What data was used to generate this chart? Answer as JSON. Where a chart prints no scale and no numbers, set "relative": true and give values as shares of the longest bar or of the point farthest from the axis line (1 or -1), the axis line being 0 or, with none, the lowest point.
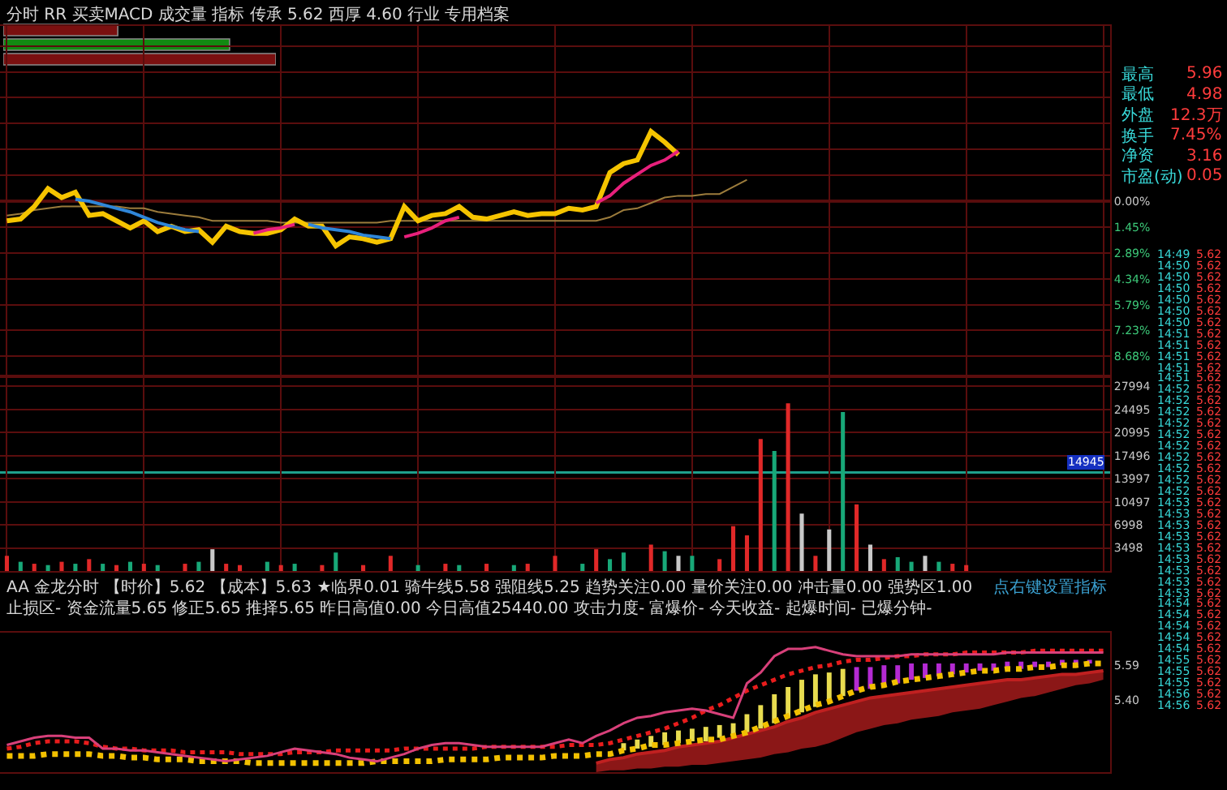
{
  "chart_data": [
    {
      "type": "bar",
      "orientation": "horizontal",
      "relative": true,
      "categories": [
        null,
        null,
        null
      ],
      "values": [
        0.42,
        0.83,
        1
      ],
      "colors": [
        "#7a1010",
        "#128a12",
        "#7a1010"
      ],
      "tick_labels": false
    },
    {
      "type": "line",
      "title": "分时 RR 买卖MACD 成交量 指标 传承 5.62 西厚 4.60 行业 专用档案",
      "annotations": [
        "最高 5.96",
        "最低 4.98",
        "外盘 12.3万",
        "换手 7.45%",
        "净资 3.16",
        "市盈(动) 0.05"
      ],
      "categories": [
        null,
        null,
        null,
        null,
        null,
        null,
        null,
        null,
        null,
        null,
        null,
        null,
        null,
        null,
        null,
        null,
        null,
        null,
        null,
        null,
        null,
        null,
        null,
        null,
        null,
        null,
        null,
        null,
        null,
        null,
        null,
        null,
        null,
        null,
        null,
        null,
        null,
        null,
        null,
        null,
        null,
        null,
        null,
        null,
        null,
        null,
        null,
        null,
        null,
        null,
        null,
        null,
        null,
        null,
        null,
        null,
        null,
        null,
        null,
        null,
        null,
        null,
        null,
        null,
        null,
        null,
        null,
        null,
        null,
        null,
        null,
        null,
        null,
        null,
        null,
        null,
        null,
        null,
        null,
        null,
        null
      ],
      "ylim": [
        -9.8,
        9.8
      ],
      "yticks": [
        {
          "value": 8.68,
          "label": null
        },
        {
          "value": 7.23,
          "label": null
        },
        {
          "value": 5.79,
          "label": null
        },
        {
          "value": 4.34,
          "label": null
        },
        {
          "value": 2.89,
          "label": null
        },
        {
          "value": 1.45,
          "label": null
        },
        {
          "value": 0,
          "label": "0.00%"
        },
        {
          "value": -1.45,
          "label": "1.45%"
        },
        {
          "value": -2.89,
          "label": "2.89%"
        },
        {
          "value": -4.34,
          "label": "4.34%"
        },
        {
          "value": -5.79,
          "label": "5.79%"
        },
        {
          "value": -7.23,
          "label": "7.23%"
        },
        {
          "value": -8.68,
          "label": "8.68%"
        }
      ],
      "grid": true,
      "tick_labels": "y",
      "series": [
        {
          "color": "#9c7c3c",
          "values": [
            -0.8,
            -0.7,
            -0.5,
            -0.4,
            -0.3,
            -0.3,
            -0.3,
            -0.3,
            -0.3,
            -0.4,
            -0.4,
            -0.6,
            -0.7,
            -0.8,
            -0.9,
            -1.1,
            -1.1,
            -1.1,
            -1.1,
            -1.1,
            -1.2,
            -1.2,
            -1.2,
            -1.2,
            -1.2,
            -1.2,
            -1.2,
            -1.2,
            -1.1,
            -1.1,
            -1.1,
            -1.1,
            -1.1,
            -1.1,
            -1.1,
            -1.1,
            -1.1,
            -1.1,
            -1.1,
            -1.1,
            -1.1,
            -1.1,
            -1.1,
            -1.1,
            -0.9,
            -0.5,
            -0.4,
            -0.1,
            0.2,
            0.3,
            0.3,
            0.4,
            0.4,
            0.8,
            1.2,
            null,
            null,
            null,
            null,
            null,
            null,
            null,
            null,
            null,
            null,
            null,
            null,
            null,
            null,
            null,
            null,
            null,
            null,
            null,
            null,
            null,
            null,
            null,
            null,
            null,
            null
          ]
        },
        {
          "color": "#f5c400",
          "values": [
            -1.1,
            -1.0,
            -0.3,
            0.7,
            0.2,
            0.5,
            -0.8,
            -0.7,
            -1.1,
            -1.5,
            -1.1,
            -1.7,
            -1.4,
            -1.7,
            -1.6,
            -2.3,
            -1.4,
            -1.7,
            -1.8,
            -1.8,
            -1.6,
            -1.0,
            -1.4,
            -1.4,
            -2.5,
            -2.0,
            -2.1,
            -2.3,
            -2.1,
            -0.3,
            -1.1,
            -0.8,
            -0.7,
            -0.3,
            -0.9,
            -1.0,
            -0.8,
            -0.6,
            -0.8,
            -0.7,
            -0.7,
            -0.4,
            -0.5,
            -0.3,
            1.6,
            2.1,
            2.3,
            3.9,
            3.3,
            2.6,
            null,
            null,
            null,
            null,
            null,
            null,
            null,
            null,
            null,
            null,
            null,
            null,
            null,
            null,
            null,
            null,
            null,
            null,
            null,
            null,
            null,
            null,
            null,
            null,
            null,
            null,
            null,
            null,
            null,
            null,
            null
          ]
        },
        {
          "color": "#2f86d8",
          "values": [
            null,
            null,
            null,
            null,
            null,
            0.1,
            0.0,
            -0.2,
            -0.4,
            -0.6,
            -0.9,
            -1.2,
            -1.4,
            -1.6,
            -1.7,
            null,
            null,
            null,
            null,
            null,
            null,
            null,
            -1.3,
            -1.5,
            -1.6,
            -1.7,
            -1.9,
            -2.0,
            -2.1,
            null,
            null,
            null,
            null,
            null,
            null,
            null,
            null,
            null,
            null,
            null,
            null,
            null,
            null,
            null,
            null,
            null,
            null,
            null,
            null,
            null,
            null,
            null,
            null,
            null,
            null,
            null,
            null,
            null,
            null,
            null,
            null,
            null,
            null,
            null,
            null,
            null,
            null,
            null,
            null,
            null,
            null,
            null,
            null,
            null,
            null,
            null,
            null,
            null,
            null,
            null,
            null
          ]
        },
        {
          "color": "#e8207c",
          "values": [
            null,
            null,
            null,
            null,
            null,
            null,
            null,
            null,
            null,
            null,
            null,
            null,
            null,
            null,
            null,
            null,
            null,
            null,
            -1.8,
            -1.6,
            -1.5,
            -1.3,
            null,
            null,
            null,
            null,
            null,
            null,
            null,
            -2.0,
            -1.8,
            -1.5,
            -1.1,
            -0.9,
            null,
            null,
            null,
            null,
            null,
            null,
            null,
            null,
            null,
            -0.1,
            0.3,
            1.0,
            1.5,
            2.0,
            2.3,
            2.8,
            null,
            null,
            null,
            null,
            null,
            null,
            null,
            null,
            null,
            null,
            null,
            null,
            null,
            null,
            null,
            null,
            null,
            null,
            null,
            null,
            null,
            null,
            null,
            null,
            null,
            null,
            null,
            null,
            null,
            null,
            null
          ]
        }
      ],
      "ref_lines": [
        {
          "axis": "y",
          "value": 0,
          "color": "#a01818"
        }
      ]
    },
    {
      "type": "bar",
      "annotations": [
        "14:49 5.62",
        "14:50 5.62",
        "14:50 5.62",
        "14:50 5.62",
        "14:50 5.62",
        "14:50 5.62",
        "14:50 5.62",
        "14:51 5.62",
        "14:51 5.62",
        "14:51 5.62",
        "14:51 5.62",
        "14:51 5.62",
        "14:52 5.62",
        "14:52 5.62",
        "14:52 5.62",
        "14:52 5.62",
        "14:52 5.62",
        "14:52 5.62",
        "14:52 5.62",
        "14:52 5.62",
        "14:52 5.62",
        "14:52 5.62",
        "14:53 5.62",
        "14:53 5.62",
        "14:53 5.62",
        "14:53 5.62",
        "14:53 5.62",
        "14:53 5.62",
        "14:53 5.62",
        "14:53 5.62",
        "14:53 5.62",
        "14:54 5.62",
        "14:54 5.62",
        "14:54 5.62",
        "14:54 5.62",
        "14:54 5.62",
        "14:55 5.62",
        "14:55 5.62",
        "14:55 5.62",
        "14:56 5.62",
        "14:56 5.62"
      ],
      "categories": [
        null,
        null,
        null,
        null,
        null,
        null,
        null,
        null,
        null,
        null,
        null,
        null,
        null,
        null,
        null,
        null,
        null,
        null,
        null,
        null,
        null,
        null,
        null,
        null,
        null,
        null,
        null,
        null,
        null,
        null,
        null,
        null,
        null,
        null,
        null,
        null,
        null,
        null,
        null,
        null,
        null,
        null,
        null,
        null,
        null,
        null,
        null,
        null,
        null,
        null,
        null,
        null,
        null,
        null,
        null,
        null,
        null,
        null,
        null,
        null,
        null,
        null,
        null,
        null,
        null,
        null,
        null,
        null,
        null,
        null,
        null,
        null,
        null,
        null,
        null,
        null,
        null,
        null,
        null,
        null,
        null
      ],
      "values": [
        2300,
        1400,
        1100,
        900,
        1400,
        1100,
        1800,
        1100,
        900,
        1400,
        1100,
        900,
        null,
        1100,
        1400,
        3300,
        1100,
        900,
        null,
        1400,
        900,
        1100,
        null,
        900,
        2800,
        null,
        900,
        null,
        2300,
        null,
        900,
        null,
        1100,
        900,
        null,
        1100,
        null,
        900,
        1100,
        null,
        2300,
        null,
        1100,
        3300,
        1800,
        2800,
        null,
        4000,
        3000,
        2300,
        2300,
        null,
        1800,
        6800,
        5400,
        20000,
        18200,
        25400,
        8700,
        2300,
        6300,
        24100,
        10100,
        4000,
        1800,
        2100,
        1400,
        2300,
        1400,
        1100,
        900,
        null,
        null,
        null,
        null,
        null,
        null,
        null,
        null,
        null,
        null
      ],
      "colors": [
        "#e02828",
        "#18a878",
        "#e02828",
        "#18a878",
        "#e02828",
        "#18a878",
        "#e02828",
        "#18a878",
        "#e02828",
        "#18a878",
        "#e02828",
        "#18a878",
        null,
        "#e02828",
        "#18a878",
        "#c8c8c8",
        "#e02828",
        "#e02828",
        null,
        "#18a878",
        "#e02828",
        "#18a878",
        null,
        "#e02828",
        "#18a878",
        null,
        "#e02828",
        null,
        "#e02828",
        null,
        "#18a878",
        null,
        "#e02828",
        "#18a878",
        null,
        "#e02828",
        null,
        "#18a878",
        "#e02828",
        null,
        "#e02828",
        null,
        "#18a878",
        "#e02828",
        "#18a878",
        "#18a878",
        null,
        "#e02828",
        "#18a878",
        "#c8c8c8",
        "#18a878",
        null,
        "#e02828",
        "#e02828",
        "#e02828",
        "#e02828",
        "#18a878",
        "#e02828",
        "#c8c8c8",
        "#e02828",
        "#c8c8c8",
        "#18a878",
        "#e02828",
        "#c8c8c8",
        "#e02828",
        "#18a878",
        "#18a878",
        "#c8c8c8",
        "#18a878",
        "#e02828",
        "#e02828",
        null,
        null,
        null,
        null,
        null,
        null,
        null,
        null,
        null,
        null
      ],
      "ylim": [
        0,
        29500
      ],
      "yticks": [
        3498,
        6998,
        10497,
        13997,
        17496,
        20995,
        24495,
        27994
      ],
      "grid": true,
      "tick_labels": "y",
      "ref_lines": [
        {
          "axis": "y",
          "value": 14945,
          "label": "14945",
          "color": "#1f9f8c"
        }
      ]
    },
    {
      "type": "line",
      "title": "AA 金龙分时 【时价】5.62 【成本】5.63 ★临界0.01 骑牛线5.58 强阻线5.25 趋势关注0.00 量价关注0.00 冲击量0.00 强势区1.00 止损区- 资金流量5.65 修正5.65 推择5.65 昨日高值0.00 今日高值25440.00 攻击力度- 富爆价- 今天收益- 起爆时间- 已爆分钟-",
      "annotations": [
        "点右键设置指标"
      ],
      "categories": [
        null,
        null,
        null,
        null,
        null,
        null,
        null,
        null,
        null,
        null,
        null,
        null,
        null,
        null,
        null,
        null,
        null,
        null,
        null,
        null,
        null,
        null,
        null,
        null,
        null,
        null,
        null,
        null,
        null,
        null,
        null,
        null,
        null,
        null,
        null,
        null,
        null,
        null,
        null,
        null,
        null,
        null,
        null,
        null,
        null,
        null,
        null,
        null,
        null,
        null,
        null,
        null,
        null,
        null,
        null,
        null,
        null,
        null,
        null,
        null,
        null,
        null,
        null,
        null,
        null,
        null,
        null,
        null,
        null,
        null,
        null,
        null,
        null,
        null,
        null,
        null,
        null,
        null,
        null,
        null,
        null
      ],
      "ylim": [
        5.0,
        5.77
      ],
      "yticks": [
        {
          "value": 5.4,
          "label": "5.40"
        },
        {
          "value": 5.59,
          "label": "5.59"
        }
      ],
      "tick_labels": "y",
      "series": [
        {
          "color": "#c02020",
          "values": [
            null,
            null,
            null,
            null,
            null,
            null,
            null,
            null,
            null,
            null,
            null,
            null,
            null,
            null,
            null,
            null,
            null,
            null,
            null,
            null,
            null,
            null,
            null,
            null,
            null,
            null,
            null,
            null,
            null,
            null,
            null,
            null,
            null,
            null,
            null,
            null,
            null,
            null,
            null,
            null,
            null,
            null,
            null,
            5.05,
            5.07,
            5.08,
            5.1,
            5.11,
            5.12,
            5.14,
            5.15,
            5.16,
            5.17,
            5.19,
            5.21,
            5.23,
            5.25,
            5.28,
            5.3,
            5.33,
            5.35,
            5.37,
            5.39,
            5.41,
            5.42,
            5.43,
            5.44,
            5.45,
            5.46,
            5.47,
            5.48,
            5.49,
            5.5,
            5.51,
            5.51,
            5.52,
            5.53,
            5.54,
            5.54,
            5.55,
            5.56
          ],
          "upper": [
            null,
            null,
            null,
            null,
            null,
            null,
            null,
            null,
            null,
            null,
            null,
            null,
            null,
            null,
            null,
            null,
            null,
            null,
            null,
            null,
            null,
            null,
            null,
            null,
            null,
            null,
            null,
            null,
            null,
            null,
            null,
            null,
            null,
            null,
            null,
            null,
            null,
            null,
            null,
            null,
            null,
            null,
            null,
            5.05,
            5.07,
            5.08,
            5.1,
            5.11,
            5.12,
            5.14,
            5.15,
            5.16,
            5.17,
            5.19,
            5.21,
            5.23,
            5.25,
            5.28,
            5.3,
            5.33,
            5.35,
            5.37,
            5.39,
            5.41,
            5.42,
            5.43,
            5.44,
            5.45,
            5.46,
            5.47,
            5.48,
            5.49,
            5.5,
            5.51,
            5.51,
            5.52,
            5.53,
            5.54,
            5.54,
            5.55,
            5.56
          ],
          "lower": [
            null,
            null,
            null,
            null,
            null,
            null,
            null,
            null,
            null,
            null,
            null,
            null,
            null,
            null,
            null,
            null,
            null,
            null,
            null,
            null,
            null,
            null,
            null,
            null,
            null,
            null,
            null,
            null,
            null,
            null,
            null,
            null,
            null,
            null,
            null,
            null,
            null,
            null,
            null,
            null,
            null,
            null,
            null,
            5.0,
            5.01,
            5.01,
            5.02,
            5.02,
            5.03,
            5.03,
            5.04,
            5.04,
            5.05,
            5.06,
            5.07,
            5.08,
            5.1,
            5.11,
            5.13,
            5.14,
            5.16,
            5.19,
            5.22,
            5.24,
            5.26,
            5.27,
            5.29,
            5.3,
            5.31,
            5.33,
            5.34,
            5.35,
            5.37,
            5.39,
            5.41,
            5.42,
            5.44,
            5.46,
            5.48,
            5.49,
            5.51
          ]
        },
        {
          "type": "bar",
          "color": "#e8dc50",
          "base": [
            null,
            null,
            null,
            null,
            null,
            null,
            null,
            null,
            null,
            null,
            null,
            null,
            null,
            null,
            null,
            null,
            null,
            null,
            null,
            null,
            null,
            null,
            null,
            null,
            null,
            null,
            null,
            null,
            null,
            null,
            null,
            null,
            null,
            null,
            null,
            null,
            null,
            null,
            null,
            null,
            null,
            null,
            null,
            null,
            null,
            5.12,
            5.13,
            5.14,
            5.15,
            5.16,
            5.17,
            5.17,
            5.19,
            5.2,
            5.22,
            5.24,
            5.27,
            5.3,
            5.33,
            5.36,
            5.39,
            5.42,
            null,
            null,
            null,
            null,
            null,
            null,
            null,
            null,
            null,
            null,
            null,
            null,
            null,
            null,
            null,
            null,
            null,
            null,
            null
          ],
          "values": [
            null,
            null,
            null,
            null,
            null,
            null,
            null,
            null,
            null,
            null,
            null,
            null,
            null,
            null,
            null,
            null,
            null,
            null,
            null,
            null,
            null,
            null,
            null,
            null,
            null,
            null,
            null,
            null,
            null,
            null,
            null,
            null,
            null,
            null,
            null,
            null,
            null,
            null,
            null,
            null,
            null,
            null,
            null,
            null,
            null,
            0.04,
            0.05,
            0.06,
            0.07,
            0.07,
            0.07,
            0.08,
            0.07,
            0.07,
            0.1,
            0.13,
            0.16,
            0.17,
            0.18,
            0.18,
            0.16,
            0.15,
            null,
            null,
            null,
            null,
            null,
            null,
            null,
            null,
            null,
            null,
            null,
            null,
            null,
            null,
            null,
            null,
            null,
            null,
            null
          ]
        },
        {
          "type": "bar",
          "color": "#b42ad2",
          "base": [
            null,
            null,
            null,
            null,
            null,
            null,
            null,
            null,
            null,
            null,
            null,
            null,
            null,
            null,
            null,
            null,
            null,
            null,
            null,
            null,
            null,
            null,
            null,
            null,
            null,
            null,
            null,
            null,
            null,
            null,
            null,
            null,
            null,
            null,
            null,
            null,
            null,
            null,
            null,
            null,
            null,
            null,
            null,
            null,
            null,
            null,
            null,
            null,
            null,
            null,
            null,
            null,
            null,
            null,
            null,
            null,
            null,
            null,
            null,
            null,
            null,
            null,
            5.45,
            5.46,
            5.48,
            5.49,
            5.51,
            5.52,
            5.53,
            5.54,
            5.55,
            5.56,
            5.56,
            5.57,
            5.57,
            5.58,
            5.58,
            5.59,
            5.59,
            5.6,
            null
          ],
          "values": [
            null,
            null,
            null,
            null,
            null,
            null,
            null,
            null,
            null,
            null,
            null,
            null,
            null,
            null,
            null,
            null,
            null,
            null,
            null,
            null,
            null,
            null,
            null,
            null,
            null,
            null,
            null,
            null,
            null,
            null,
            null,
            null,
            null,
            null,
            null,
            null,
            null,
            null,
            null,
            null,
            null,
            null,
            null,
            null,
            null,
            null,
            null,
            null,
            null,
            null,
            null,
            null,
            null,
            null,
            null,
            null,
            null,
            null,
            null,
            null,
            null,
            null,
            0.13,
            0.12,
            0.11,
            0.1,
            0.09,
            0.08,
            0.07,
            0.06,
            0.05,
            0.04,
            0.04,
            0.04,
            0.04,
            0.03,
            0.03,
            0.03,
            0.03,
            0.02,
            null
          ]
        },
        {
          "color": "#e81c1c",
          "line_style": "dotted",
          "values": [
            5.13,
            5.14,
            5.16,
            5.17,
            5.17,
            5.17,
            5.16,
            5.14,
            5.13,
            5.13,
            5.12,
            5.12,
            5.12,
            5.11,
            5.11,
            5.11,
            5.11,
            5.1,
            5.1,
            5.1,
            5.1,
            5.11,
            5.11,
            5.11,
            5.12,
            5.12,
            5.12,
            5.12,
            5.12,
            5.13,
            5.13,
            5.13,
            5.13,
            5.13,
            5.13,
            5.14,
            5.14,
            5.14,
            5.14,
            5.14,
            5.14,
            5.15,
            5.15,
            5.15,
            5.16,
            5.18,
            5.2,
            5.22,
            5.24,
            5.27,
            5.3,
            5.34,
            5.37,
            5.41,
            5.45,
            5.48,
            5.51,
            5.54,
            5.56,
            5.58,
            5.59,
            5.61,
            5.62,
            5.62,
            5.63,
            5.64,
            5.64,
            5.65,
            5.65,
            5.65,
            5.66,
            5.66,
            5.66,
            5.66,
            5.66,
            5.67,
            5.67,
            5.67,
            5.67,
            5.67,
            5.67
          ]
        },
        {
          "color": "#f2c000",
          "line_style": "dotted",
          "values": [
            5.09,
            5.09,
            5.09,
            5.1,
            5.1,
            5.1,
            5.1,
            5.09,
            5.09,
            5.08,
            5.08,
            5.07,
            5.07,
            5.07,
            5.06,
            5.06,
            5.06,
            5.06,
            5.05,
            5.05,
            5.05,
            5.05,
            5.05,
            5.05,
            5.05,
            5.05,
            5.05,
            5.06,
            5.06,
            5.06,
            5.06,
            5.06,
            5.07,
            5.07,
            5.07,
            5.07,
            5.08,
            5.08,
            5.08,
            5.08,
            5.09,
            5.09,
            5.09,
            5.1,
            5.1,
            5.12,
            5.13,
            5.15,
            5.15,
            5.16,
            5.17,
            5.18,
            5.18,
            5.2,
            5.22,
            5.25,
            5.28,
            5.31,
            5.34,
            5.37,
            5.39,
            5.42,
            5.45,
            5.47,
            5.48,
            5.5,
            5.51,
            5.52,
            5.53,
            5.54,
            5.55,
            5.56,
            5.56,
            5.57,
            5.57,
            5.58,
            5.58,
            5.59,
            5.59,
            5.6,
            5.6
          ]
        },
        {
          "color": "#d8407a",
          "values": [
            5.15,
            5.17,
            5.19,
            5.2,
            5.2,
            5.19,
            5.19,
            5.13,
            5.13,
            5.12,
            5.12,
            5.11,
            5.1,
            5.09,
            5.08,
            5.07,
            5.06,
            5.07,
            5.08,
            5.09,
            5.11,
            5.13,
            5.12,
            5.11,
            5.1,
            5.08,
            5.07,
            5.06,
            5.08,
            5.1,
            5.13,
            5.15,
            5.16,
            5.16,
            5.15,
            5.14,
            5.14,
            5.14,
            5.14,
            5.14,
            5.16,
            5.18,
            5.16,
            5.2,
            5.23,
            5.27,
            5.3,
            5.31,
            5.33,
            5.34,
            5.35,
            5.34,
            5.32,
            5.3,
            5.49,
            5.55,
            5.64,
            5.68,
            5.68,
            5.69,
            5.67,
            5.65,
            5.64,
            5.64,
            5.64,
            5.64,
            5.65,
            5.65,
            5.65,
            5.65,
            5.65,
            5.65,
            5.65,
            5.66,
            5.66,
            5.66,
            5.66,
            5.66,
            5.66,
            5.66,
            5.66
          ]
        }
      ]
    }
  ]
}
